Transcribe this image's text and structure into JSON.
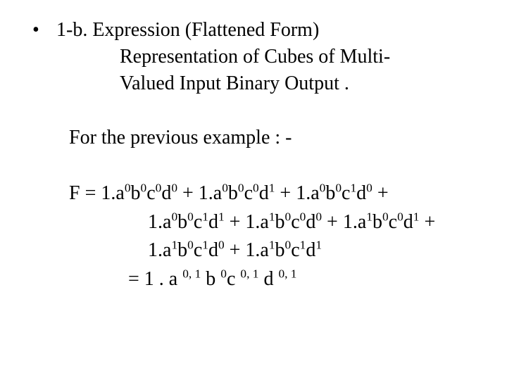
{
  "text_color": "#000000",
  "background_color": "#ffffff",
  "font_family": "Times New Roman",
  "base_font_size_pt": 21,
  "bullet": {
    "marker": "•",
    "line1": "1-b. Expression (Flattened Form)",
    "line2": "Representation of Cubes of Multi-",
    "line3": "Valued Input Binary Output ."
  },
  "for_line": "For the previous example : -",
  "equation": {
    "lhs": "F = ",
    "coef": "1.",
    "plus": " + ",
    "terms": [
      {
        "a": "0",
        "b": "0",
        "c": "0",
        "d": "0"
      },
      {
        "a": "0",
        "b": "0",
        "c": "0",
        "d": "1"
      },
      {
        "a": "0",
        "b": "0",
        "c": "1",
        "d": "0"
      },
      {
        "a": "0",
        "b": "0",
        "c": "1",
        "d": "1"
      },
      {
        "a": "1",
        "b": "0",
        "c": "0",
        "d": "0"
      },
      {
        "a": "1",
        "b": "0",
        "c": "0",
        "d": "1"
      },
      {
        "a": "1",
        "b": "0",
        "c": "1",
        "d": "0"
      },
      {
        "a": "1",
        "b": "0",
        "c": "1",
        "d": "1"
      }
    ],
    "result_prefix": "= 1 . a ",
    "result_a_exp": "0, 1",
    "result_mid1": " b ",
    "result_b_exp": "0",
    "result_mid2": "c ",
    "result_c_exp": "0, 1",
    "result_mid3": " d ",
    "result_d_exp": "0, 1"
  }
}
